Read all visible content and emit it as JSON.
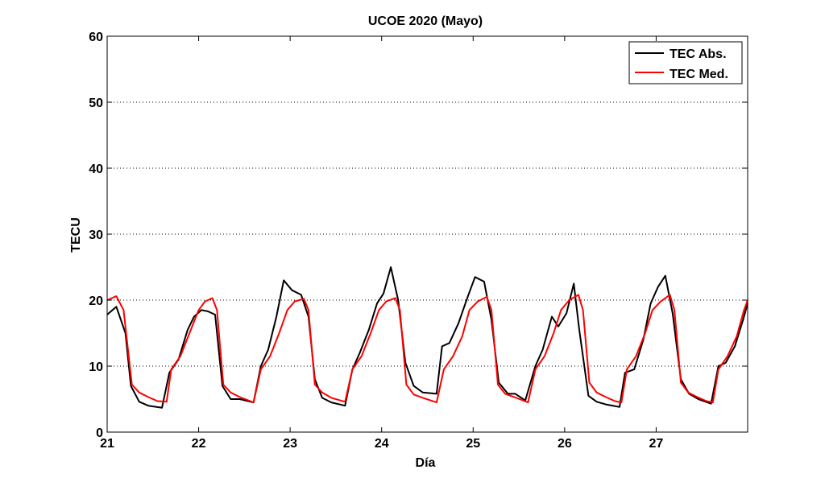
{
  "chart_data": {
    "type": "line",
    "title": "UCOE 2020 (Mayo)",
    "xlabel": "Día",
    "ylabel": "TECU",
    "xlim": [
      21,
      28
    ],
    "ylim": [
      0,
      60
    ],
    "xticks": [
      21,
      22,
      23,
      24,
      25,
      26,
      27
    ],
    "yticks": [
      0,
      10,
      20,
      30,
      40,
      50,
      60
    ],
    "grid": "y-dotted",
    "legend_position": "top-right",
    "series": [
      {
        "name": "TEC Abs.",
        "color": "#000000",
        "points": [
          [
            21.0,
            17.8
          ],
          [
            21.1,
            19.0
          ],
          [
            21.2,
            15.0
          ],
          [
            21.26,
            7.0
          ],
          [
            21.35,
            4.6
          ],
          [
            21.45,
            4.0
          ],
          [
            21.6,
            3.7
          ],
          [
            21.68,
            9.0
          ],
          [
            21.78,
            11.0
          ],
          [
            21.88,
            15.5
          ],
          [
            21.95,
            17.5
          ],
          [
            22.03,
            18.5
          ],
          [
            22.1,
            18.3
          ],
          [
            22.18,
            17.8
          ],
          [
            22.26,
            7.0
          ],
          [
            22.35,
            5.0
          ],
          [
            22.45,
            5.0
          ],
          [
            22.6,
            4.5
          ],
          [
            22.68,
            10.0
          ],
          [
            22.76,
            12.5
          ],
          [
            22.85,
            17.5
          ],
          [
            22.93,
            23.0
          ],
          [
            23.02,
            21.5
          ],
          [
            23.12,
            20.8
          ],
          [
            23.2,
            17.5
          ],
          [
            23.27,
            8.0
          ],
          [
            23.35,
            5.2
          ],
          [
            23.45,
            4.5
          ],
          [
            23.6,
            4.0
          ],
          [
            23.68,
            9.5
          ],
          [
            23.76,
            12.0
          ],
          [
            23.86,
            15.5
          ],
          [
            23.95,
            19.5
          ],
          [
            24.02,
            21.0
          ],
          [
            24.1,
            25.0
          ],
          [
            24.18,
            20.0
          ],
          [
            24.26,
            10.5
          ],
          [
            24.35,
            7.0
          ],
          [
            24.45,
            6.0
          ],
          [
            24.6,
            5.8
          ],
          [
            24.66,
            13.0
          ],
          [
            24.74,
            13.5
          ],
          [
            24.84,
            16.5
          ],
          [
            24.94,
            20.5
          ],
          [
            25.02,
            23.5
          ],
          [
            25.12,
            22.8
          ],
          [
            25.2,
            17.0
          ],
          [
            25.28,
            7.5
          ],
          [
            25.38,
            5.8
          ],
          [
            25.46,
            5.8
          ],
          [
            25.57,
            4.8
          ],
          [
            25.68,
            10.0
          ],
          [
            25.76,
            12.5
          ],
          [
            25.86,
            17.5
          ],
          [
            25.93,
            16.0
          ],
          [
            26.02,
            18.0
          ],
          [
            26.1,
            22.5
          ],
          [
            26.16,
            15.5
          ],
          [
            26.26,
            5.5
          ],
          [
            26.35,
            4.6
          ],
          [
            26.45,
            4.2
          ],
          [
            26.6,
            3.8
          ],
          [
            26.66,
            9.0
          ],
          [
            26.76,
            9.5
          ],
          [
            26.86,
            14.0
          ],
          [
            26.94,
            19.5
          ],
          [
            27.02,
            22.0
          ],
          [
            27.1,
            23.7
          ],
          [
            27.18,
            18.0
          ],
          [
            27.27,
            8.0
          ],
          [
            27.36,
            5.8
          ],
          [
            27.46,
            5.0
          ],
          [
            27.6,
            4.3
          ],
          [
            27.68,
            10.0
          ],
          [
            27.76,
            10.5
          ],
          [
            27.86,
            13.0
          ],
          [
            27.95,
            17.0
          ],
          [
            28.0,
            19.5
          ]
        ]
      },
      {
        "name": "TEC Med.",
        "color": "#ff0000",
        "points": [
          [
            21.0,
            20.0
          ],
          [
            21.1,
            20.6
          ],
          [
            21.18,
            18.5
          ],
          [
            21.27,
            7.2
          ],
          [
            21.35,
            6.0
          ],
          [
            21.45,
            5.3
          ],
          [
            21.55,
            4.7
          ],
          [
            21.65,
            4.6
          ],
          [
            21.7,
            9.5
          ],
          [
            21.8,
            11.5
          ],
          [
            21.9,
            15.0
          ],
          [
            22.0,
            18.5
          ],
          [
            22.07,
            19.8
          ],
          [
            22.15,
            20.3
          ],
          [
            22.2,
            18.5
          ],
          [
            22.27,
            7.2
          ],
          [
            22.35,
            6.0
          ],
          [
            22.45,
            5.3
          ],
          [
            22.6,
            4.5
          ],
          [
            22.68,
            9.5
          ],
          [
            22.78,
            11.5
          ],
          [
            22.88,
            15.0
          ],
          [
            22.97,
            18.5
          ],
          [
            23.05,
            19.8
          ],
          [
            23.15,
            20.2
          ],
          [
            23.2,
            18.5
          ],
          [
            23.27,
            7.2
          ],
          [
            23.35,
            6.0
          ],
          [
            23.45,
            5.2
          ],
          [
            23.6,
            4.6
          ],
          [
            23.68,
            9.5
          ],
          [
            23.78,
            11.5
          ],
          [
            23.88,
            15.0
          ],
          [
            23.97,
            18.5
          ],
          [
            24.05,
            19.8
          ],
          [
            24.15,
            20.3
          ],
          [
            24.2,
            18.5
          ],
          [
            24.27,
            7.2
          ],
          [
            24.35,
            5.7
          ],
          [
            24.45,
            5.2
          ],
          [
            24.6,
            4.5
          ],
          [
            24.68,
            9.5
          ],
          [
            24.78,
            11.5
          ],
          [
            24.88,
            14.5
          ],
          [
            24.96,
            18.5
          ],
          [
            25.05,
            19.8
          ],
          [
            25.15,
            20.5
          ],
          [
            25.2,
            18.5
          ],
          [
            25.27,
            7.2
          ],
          [
            25.35,
            5.8
          ],
          [
            25.45,
            5.3
          ],
          [
            25.6,
            4.5
          ],
          [
            25.68,
            9.5
          ],
          [
            25.78,
            11.5
          ],
          [
            25.88,
            15.0
          ],
          [
            25.96,
            18.5
          ],
          [
            26.05,
            20.0
          ],
          [
            26.15,
            20.8
          ],
          [
            26.2,
            18.5
          ],
          [
            26.27,
            7.5
          ],
          [
            26.35,
            6.0
          ],
          [
            26.45,
            5.3
          ],
          [
            26.55,
            4.7
          ],
          [
            26.62,
            4.5
          ],
          [
            26.68,
            9.5
          ],
          [
            26.78,
            11.5
          ],
          [
            26.88,
            15.0
          ],
          [
            26.96,
            18.5
          ],
          [
            27.05,
            19.8
          ],
          [
            27.15,
            20.8
          ],
          [
            27.2,
            18.5
          ],
          [
            27.27,
            7.5
          ],
          [
            27.35,
            6.0
          ],
          [
            27.45,
            5.3
          ],
          [
            27.55,
            4.7
          ],
          [
            27.62,
            4.5
          ],
          [
            27.68,
            9.5
          ],
          [
            27.78,
            11.5
          ],
          [
            27.88,
            14.5
          ],
          [
            27.96,
            18.5
          ],
          [
            28.0,
            20.0
          ]
        ]
      }
    ]
  }
}
